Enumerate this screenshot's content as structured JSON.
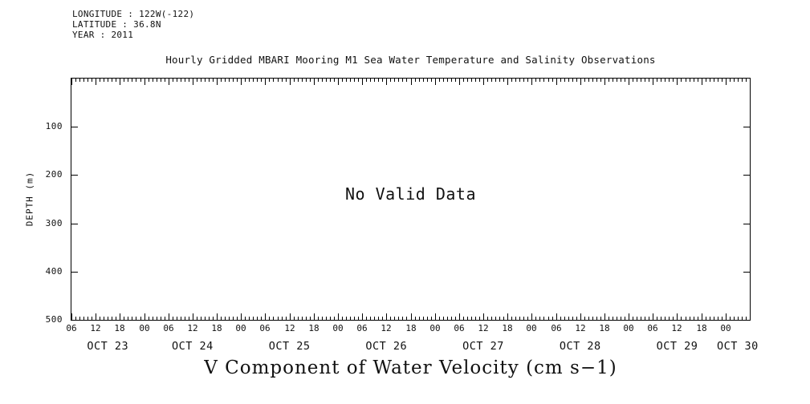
{
  "meta": {
    "longitude": "LONGITUDE : 122W(-122)",
    "latitude": "LATITUDE : 36.8N",
    "year": "YEAR : 2011"
  },
  "title": "Hourly Gridded MBARI Mooring M1 Sea Water Temperature and Salinity Observations",
  "no_data_message": "No Valid Data",
  "caption": "V Component of Water Velocity (cm s−1)",
  "chart_data": {
    "type": "heatmap",
    "title": "Hourly Gridded MBARI Mooring M1 Sea Water Temperature and Salinity Observations",
    "xlabel": "V Component of Water Velocity (cm s−1)",
    "ylabel": "DEPTH (m)",
    "y_ticks": [
      100,
      200,
      300,
      400,
      500
    ],
    "ylim": [
      500,
      0
    ],
    "grid": false,
    "legend": false,
    "no_data": true,
    "values": [],
    "series": [],
    "annotations": [
      "No Valid Data"
    ],
    "x_axis": {
      "start_hour": 6,
      "hours_span": 168,
      "major_step_hours": 6,
      "minor_step_hours": 1,
      "last_labeled_hour": 162,
      "hour_label_cycle": [
        "06",
        "12",
        "18",
        "00"
      ],
      "day_labels": [
        {
          "label": "OCT 23",
          "center_hour": 9
        },
        {
          "label": "OCT 24",
          "center_hour": 30
        },
        {
          "label": "OCT 25",
          "center_hour": 54
        },
        {
          "label": "OCT 26",
          "center_hour": 78
        },
        {
          "label": "OCT 27",
          "center_hour": 102
        },
        {
          "label": "OCT 28",
          "center_hour": 126
        },
        {
          "label": "OCT 29",
          "center_hour": 150
        },
        {
          "label": "OCT 30",
          "center_hour": 165
        }
      ]
    }
  }
}
